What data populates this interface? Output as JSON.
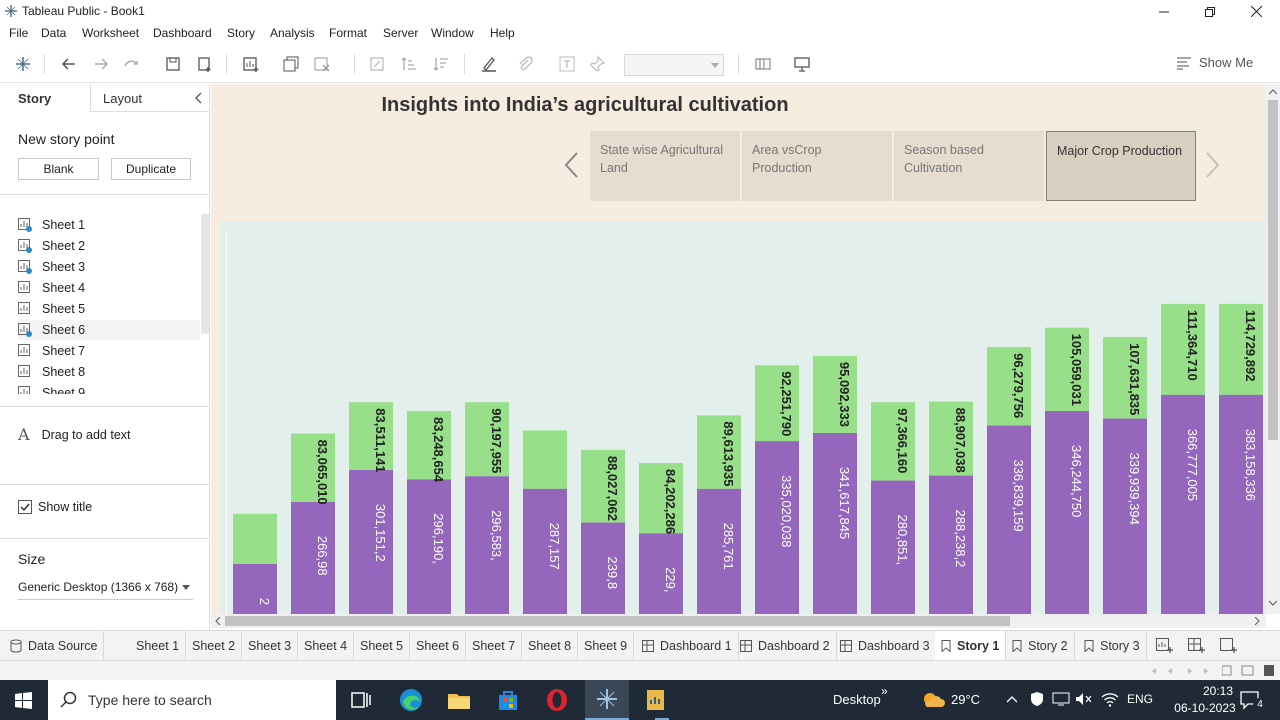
{
  "window": {
    "title": "Tableau Public - Book1"
  },
  "menu": [
    "File",
    "Data",
    "Worksheet",
    "Dashboard",
    "Story",
    "Analysis",
    "Format",
    "Server",
    "Window",
    "Help"
  ],
  "toolbar": {
    "show_me": "Show Me"
  },
  "left_panel": {
    "tabs": [
      "Story",
      "Layout"
    ],
    "new_story_point": "New story point",
    "blank_button": "Blank",
    "duplicate_button": "Duplicate",
    "sheets": [
      "Sheet 1",
      "Sheet 2",
      "Sheet 3",
      "Sheet 4",
      "Sheet 5",
      "Sheet 6",
      "Sheet 7",
      "Sheet 8",
      "Sheet 9"
    ],
    "drag_text": "Drag to add text",
    "show_title": "Show title",
    "size_heading": "Size",
    "size_value": "Generic Desktop (1366 x 768)"
  },
  "story": {
    "title": "Insights into India’s agricultural  cultivation",
    "points": [
      {
        "label": "State wise Agricultural Land"
      },
      {
        "label": "Area vsCrop Production"
      },
      {
        "label": "Season based Cultivation"
      },
      {
        "label": "Major Crop Production"
      }
    ]
  },
  "chart_data": {
    "type": "bar",
    "stacked": true,
    "colors": {
      "bottom": "#9467bd",
      "top": "#98df8a"
    },
    "bars": [
      {
        "bottom_label": "2",
        "top_label": ""
      },
      {
        "bottom_label": "266,98",
        "top_label": "83,065,010"
      },
      {
        "bottom_label": "301,151,2",
        "top_label": "83,511,141"
      },
      {
        "bottom_label": "296,190,",
        "top_label": "83,248,654"
      },
      {
        "bottom_label": "296,583,",
        "top_label": "90,197,955"
      },
      {
        "bottom_label": "287,157",
        "top_label": ""
      },
      {
        "bottom_label": "239,8",
        "top_label": "88,027,062"
      },
      {
        "bottom_label": "229,",
        "top_label": "84,202,286"
      },
      {
        "bottom_label": "285,761",
        "top_label": "89,613,935"
      },
      {
        "bottom_label": "335,020,038",
        "top_label": "92,251,790"
      },
      {
        "bottom_label": "341,617,845",
        "top_label": "95,092,333"
      },
      {
        "bottom_label": "280,851,",
        "top_label": "97,366,160"
      },
      {
        "bottom_label": "288,238,2",
        "top_label": "88,907,038"
      },
      {
        "bottom_label": "336,839,159",
        "top_label": "96,279,756"
      },
      {
        "bottom_label": "346,244,750",
        "top_label": "105,059,031"
      },
      {
        "bottom_label": "339,939,394",
        "top_label": "107,631,835"
      },
      {
        "bottom_label": "366,777,005",
        "top_label": "111,364,710"
      },
      {
        "bottom_label": "383,158,336",
        "top_label": "114,729,892"
      }
    ]
  },
  "bottom_tabs": [
    "Data Source",
    "Sheet 1",
    "Sheet 2",
    "Sheet 3",
    "Sheet 4",
    "Sheet 5",
    "Sheet 6",
    "Sheet 7",
    "Sheet 8",
    "Sheet 9",
    "Dashboard 1",
    "Dashboard 2",
    "Dashboard 3",
    "Story 1",
    "Story 2",
    "Story 3"
  ],
  "taskbar": {
    "search_placeholder": "Type here to search",
    "desktop": "Desktop",
    "weather": "29°C",
    "language": "ENG",
    "time": "20:13",
    "date": "06-10-2023",
    "notifications": "4"
  }
}
